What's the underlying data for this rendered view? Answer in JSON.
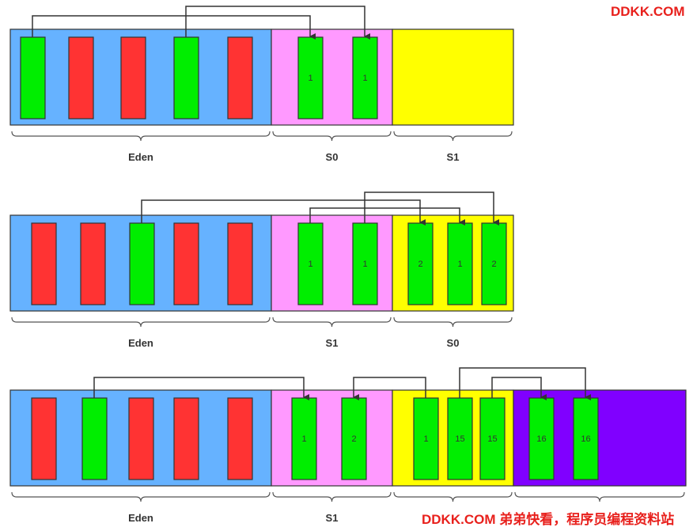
{
  "watermark_top": "DDKK.COM",
  "watermark_bottom": "DDKK.COM 弟弟快看，程序员编程资料站",
  "rows": [
    {
      "labels": [
        "Eden",
        "S0",
        "S1"
      ],
      "ages": [
        1,
        1
      ]
    },
    {
      "labels": [
        "Eden",
        "S1",
        "S0"
      ],
      "ages": [
        1,
        1,
        2,
        1,
        2
      ]
    },
    {
      "labels": [
        "Eden",
        "S1"
      ],
      "ages": [
        1,
        2,
        1,
        15,
        15,
        16,
        16
      ]
    }
  ]
}
